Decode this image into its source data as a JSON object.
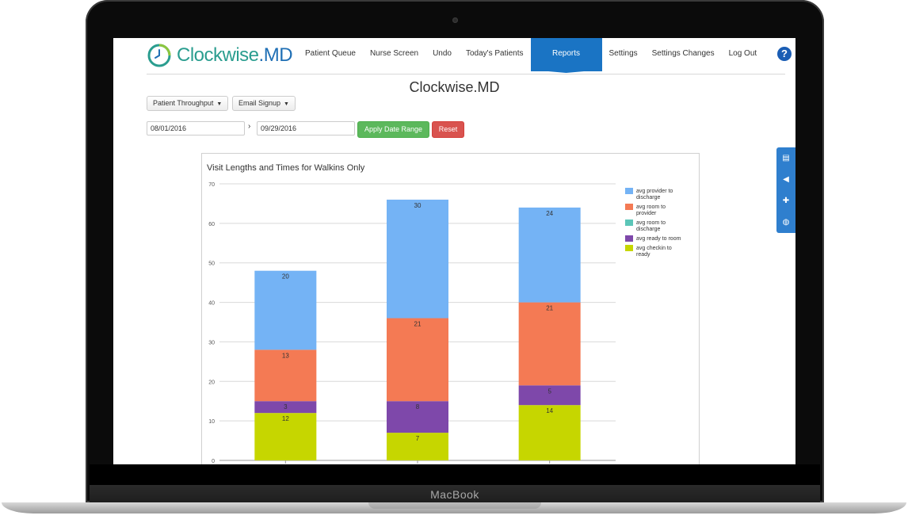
{
  "device": {
    "brand": "MacBook"
  },
  "app": {
    "logo_text_main": "Clockwise",
    "logo_text_accent": ".MD",
    "nav": [
      "Patient Queue",
      "Nurse Screen",
      "Undo",
      "Today's Patients",
      "Reports",
      "Settings",
      "Settings Changes",
      "Log Out"
    ],
    "active_nav": "Reports",
    "help_label": "?",
    "page_title": "Clockwise.MD"
  },
  "controls": {
    "report_select": "Patient Throughput",
    "signup_select": "Email Signup",
    "start_date": "08/01/2016",
    "end_date": "09/29/2016",
    "apply_label": "Apply Date Range",
    "reset_label": "Reset",
    "range_separator": "›"
  },
  "colors": {
    "accent": "#1a74c4",
    "provider_to_discharge": "#74b3f5",
    "room_to_provider": "#f47a54",
    "room_to_discharge": "#5cc6b8",
    "ready_to_room": "#7e48aa",
    "checkin_to_ready": "#c6d600"
  },
  "side_tools": [
    "book-icon",
    "megaphone-icon",
    "ambulance-icon",
    "globe-icon"
  ],
  "chart_data": {
    "type": "bar",
    "stacked": true,
    "title": "Visit Lengths and Times for Walkins Only",
    "ylim": [
      0,
      70
    ],
    "yticks": [
      0,
      10,
      20,
      30,
      40,
      50,
      60,
      70
    ],
    "categories": [
      "",
      "",
      ""
    ],
    "grid": true,
    "legend_position": "right",
    "series": [
      {
        "name": "avg checkin to ready",
        "values": [
          12,
          7,
          14
        ]
      },
      {
        "name": "avg ready to room",
        "values": [
          3,
          8,
          5
        ]
      },
      {
        "name": "avg room to discharge",
        "values": [
          0,
          0,
          0
        ]
      },
      {
        "name": "avg room to provider",
        "values": [
          13,
          21,
          21
        ]
      },
      {
        "name": "avg provider to discharge",
        "values": [
          20,
          30,
          24
        ]
      }
    ],
    "legend": [
      {
        "line1": "avg provider to",
        "line2": "discharge",
        "key": "provider_to_discharge"
      },
      {
        "line1": "avg room to",
        "line2": "provider",
        "key": "room_to_provider"
      },
      {
        "line1": "avg room to",
        "line2": "discharge",
        "key": "room_to_discharge"
      },
      {
        "line1": "avg ready to room",
        "line2": "",
        "key": "ready_to_room"
      },
      {
        "line1": "avg checkin to",
        "line2": "ready",
        "key": "checkin_to_ready"
      }
    ]
  }
}
